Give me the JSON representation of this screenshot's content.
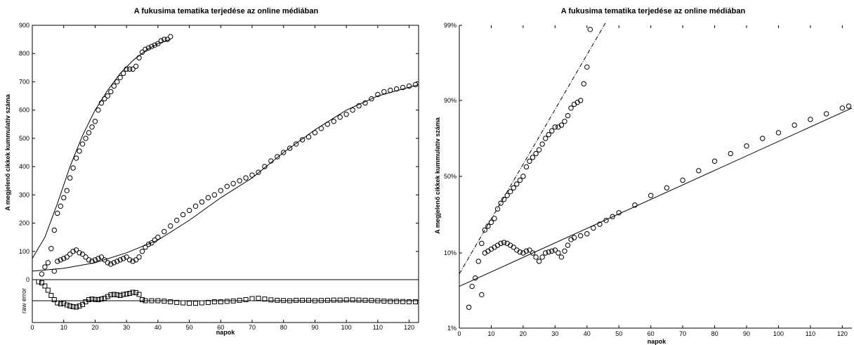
{
  "chart_data": [
    {
      "type": "scatter",
      "title": "A fukusima tematika terjedése az online médiában",
      "xlabel": "napok",
      "ylabel": "A megjelenő cikkek kummulatív száma",
      "xlim": [
        0,
        123
      ],
      "ylim": [
        0,
        900
      ],
      "x_ticks": [
        "0",
        "10",
        "20",
        "30",
        "40",
        "50",
        "60",
        "70",
        "80",
        "90",
        "100",
        "110",
        "120"
      ],
      "y_ticks": [
        "0",
        "100",
        "200",
        "300",
        "400",
        "500",
        "600",
        "700",
        "800",
        "900"
      ],
      "series": [
        {
          "marker": "circle",
          "x": [
            3,
            4,
            5,
            6,
            7,
            8,
            9,
            10,
            11,
            12,
            13,
            14,
            15,
            16,
            17,
            18,
            19,
            20,
            21,
            22,
            23,
            24,
            25,
            26,
            27,
            28,
            29,
            30,
            31,
            32,
            33,
            34,
            35,
            36,
            37,
            38,
            39,
            40,
            41,
            42,
            43,
            44
          ],
          "y": [
            20,
            45,
            60,
            110,
            175,
            235,
            260,
            290,
            315,
            360,
            395,
            430,
            455,
            480,
            500,
            520,
            540,
            560,
            600,
            625,
            640,
            650,
            665,
            685,
            700,
            715,
            730,
            745,
            745,
            745,
            755,
            785,
            805,
            815,
            820,
            825,
            830,
            835,
            845,
            850,
            850,
            860
          ]
        },
        {
          "marker": "circle",
          "x": [
            7,
            8,
            9,
            10,
            11,
            12,
            13,
            14,
            15,
            16,
            17,
            18,
            19,
            20,
            21,
            22,
            23,
            24,
            25,
            26,
            27,
            28,
            29,
            30,
            31,
            32,
            33,
            34,
            35,
            36,
            37,
            38,
            39,
            40,
            42,
            44,
            46,
            48,
            50,
            52,
            54,
            56,
            58,
            60,
            62,
            64,
            66,
            68,
            70,
            72,
            74,
            76,
            78,
            80,
            82,
            84,
            86,
            88,
            90,
            92,
            94,
            96,
            98,
            100,
            102,
            104,
            106,
            108,
            110,
            112,
            114,
            116,
            118,
            120,
            122
          ],
          "y": [
            30,
            65,
            70,
            75,
            80,
            90,
            100,
            105,
            95,
            90,
            80,
            70,
            65,
            70,
            75,
            80,
            70,
            60,
            55,
            60,
            65,
            70,
            75,
            80,
            70,
            65,
            70,
            80,
            100,
            115,
            125,
            130,
            140,
            150,
            170,
            190,
            210,
            230,
            245,
            260,
            275,
            290,
            300,
            315,
            330,
            340,
            350,
            360,
            370,
            380,
            400,
            420,
            435,
            450,
            465,
            480,
            495,
            505,
            520,
            535,
            550,
            560,
            575,
            585,
            600,
            615,
            625,
            640,
            655,
            665,
            670,
            675,
            680,
            685,
            690
          ]
        }
      ],
      "fit_curves": [
        {
          "x": [
            0,
            4,
            8,
            12,
            16,
            20,
            24,
            28,
            32,
            36,
            40,
            44
          ],
          "y": [
            75,
            150,
            270,
            400,
            510,
            600,
            670,
            730,
            775,
            810,
            835,
            850
          ]
        },
        {
          "x": [
            0,
            10,
            20,
            30,
            40,
            50,
            60,
            70,
            80,
            90,
            100,
            110,
            123
          ],
          "y": [
            30,
            40,
            60,
            95,
            140,
            210,
            290,
            360,
            450,
            530,
            600,
            650,
            690
          ]
        }
      ],
      "residuals": {
        "label": "raw error",
        "marker": "square",
        "x": [
          2,
          3,
          4,
          5,
          6,
          7,
          8,
          9,
          10,
          11,
          12,
          13,
          14,
          15,
          16,
          17,
          18,
          19,
          20,
          21,
          22,
          23,
          24,
          25,
          26,
          27,
          28,
          29,
          30,
          31,
          32,
          33,
          34,
          35,
          36,
          38,
          40,
          42,
          44,
          46,
          48,
          50,
          52,
          54,
          56,
          58,
          60,
          62,
          64,
          66,
          68,
          70,
          72,
          74,
          76,
          78,
          80,
          82,
          84,
          86,
          88,
          90,
          92,
          94,
          96,
          98,
          100,
          102,
          104,
          106,
          108,
          110,
          112,
          114,
          116,
          118,
          120,
          122
        ],
        "y": [
          0.95,
          0.85,
          0.7,
          0.5,
          0.25,
          0.05,
          -0.1,
          -0.15,
          -0.12,
          -0.2,
          -0.25,
          -0.28,
          -0.3,
          -0.25,
          -0.18,
          -0.05,
          0.05,
          0.08,
          0.06,
          0.05,
          0.08,
          0.12,
          0.2,
          0.28,
          0.3,
          0.28,
          0.25,
          0.3,
          0.32,
          0.35,
          0.4,
          0.38,
          0.3,
          0.05,
          0.0,
          0.0,
          0.0,
          -0.02,
          -0.05,
          -0.08,
          -0.1,
          -0.12,
          -0.12,
          -0.1,
          -0.08,
          -0.05,
          -0.05,
          -0.03,
          -0.01,
          0.02,
          0.05,
          0.1,
          0.12,
          0.08,
          0.04,
          0.02,
          0.01,
          0.0,
          0.02,
          0.02,
          0.02,
          0.0,
          0.01,
          0.02,
          0.03,
          0.03,
          0.04,
          0.04,
          0.03,
          0.02,
          0.01,
          0.0,
          -0.02,
          -0.03,
          -0.03,
          -0.04,
          -0.05,
          -0.05
        ]
      }
    },
    {
      "type": "scatter",
      "title": "A fukusima tematika terjedése az online médiában",
      "xlabel": "napok",
      "ylabel": "A megjelenő cikkek kummulatív száma",
      "xlim": [
        0,
        123
      ],
      "y_scale": "probability",
      "x_ticks": [
        "0",
        "10",
        "20",
        "30",
        "40",
        "50",
        "60",
        "70",
        "80",
        "90",
        "100",
        "110",
        "120"
      ],
      "y_ticks": [
        "1%",
        "10%",
        "50%",
        "90%",
        "99%"
      ],
      "series": [
        {
          "marker": "circle",
          "x": [
            3,
            4,
            5,
            6,
            7,
            8,
            9,
            10,
            11,
            12,
            13,
            14,
            15,
            16,
            17,
            18,
            19,
            20,
            21,
            22,
            23,
            24,
            25,
            26,
            27,
            28,
            29,
            30,
            31,
            32,
            33,
            34,
            35,
            36,
            37,
            38,
            39,
            40,
            41
          ],
          "y": [
            0.035,
            0.06,
            0.07,
            0.09,
            0.15,
            0.22,
            0.24,
            0.26,
            0.28,
            0.33,
            0.36,
            0.38,
            0.4,
            0.42,
            0.44,
            0.46,
            0.48,
            0.5,
            0.55,
            0.58,
            0.6,
            0.62,
            0.64,
            0.67,
            0.7,
            0.72,
            0.74,
            0.76,
            0.76,
            0.77,
            0.79,
            0.82,
            0.86,
            0.88,
            0.89,
            0.9,
            0.92,
            0.94,
            0.985
          ]
        },
        {
          "marker": "circle",
          "x": [
            7,
            8,
            9,
            10,
            11,
            12,
            13,
            14,
            15,
            16,
            17,
            18,
            19,
            20,
            21,
            22,
            23,
            24,
            25,
            26,
            27,
            28,
            29,
            30,
            31,
            32,
            33,
            34,
            35,
            36,
            38,
            40,
            42,
            44,
            46,
            48,
            50,
            55,
            60,
            65,
            70,
            75,
            80,
            85,
            90,
            95,
            100,
            105,
            110,
            115,
            120,
            122
          ],
          "y": [
            0.05,
            0.1,
            0.11,
            0.12,
            0.13,
            0.14,
            0.15,
            0.155,
            0.15,
            0.14,
            0.13,
            0.115,
            0.105,
            0.1,
            0.11,
            0.115,
            0.1,
            0.095,
            0.09,
            0.095,
            0.1,
            0.105,
            0.11,
            0.115,
            0.1,
            0.095,
            0.11,
            0.14,
            0.17,
            0.18,
            0.19,
            0.2,
            0.23,
            0.25,
            0.27,
            0.29,
            0.31,
            0.35,
            0.4,
            0.44,
            0.48,
            0.53,
            0.58,
            0.62,
            0.66,
            0.7,
            0.73,
            0.77,
            0.8,
            0.83,
            0.86,
            0.87
          ]
        }
      ],
      "fit_curves": [
        {
          "x": [
            0,
            46
          ],
          "y": [
            0.075,
            0.995
          ]
        },
        {
          "x": [
            0,
            123
          ],
          "y": [
            0.06,
            0.86
          ]
        }
      ]
    }
  ]
}
